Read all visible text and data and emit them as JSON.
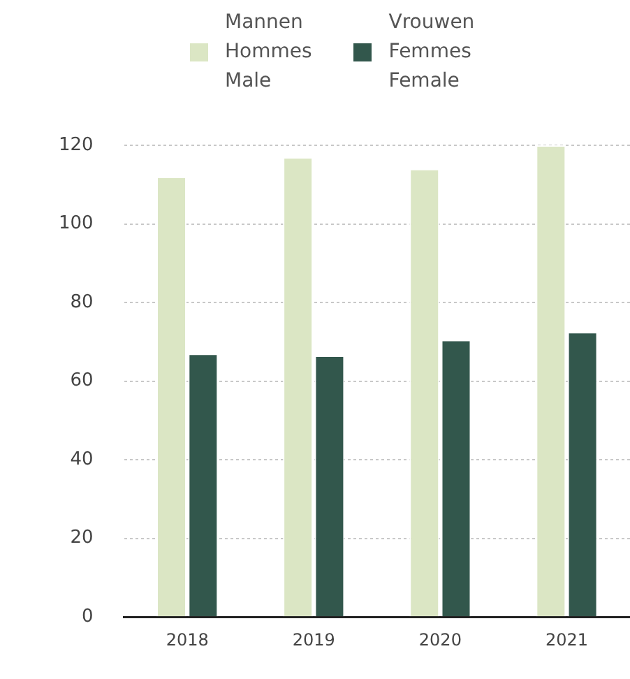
{
  "chart_data": {
    "type": "bar",
    "categories": [
      "2018",
      "2019",
      "2020",
      "2021"
    ],
    "series": [
      {
        "name": "Mannen\nHommes\nMale",
        "color": "#dbe6c4",
        "values": [
          112,
          117,
          114,
          120
        ]
      },
      {
        "name": "Vrouwen\nFemmes\nFemale",
        "color": "#32574c",
        "values": [
          67,
          66.5,
          70.5,
          72.5
        ]
      }
    ],
    "ylim": [
      0,
      120
    ],
    "yticks": [
      0,
      20,
      40,
      60,
      80,
      100,
      120
    ],
    "grid": "y",
    "legend": "top"
  }
}
